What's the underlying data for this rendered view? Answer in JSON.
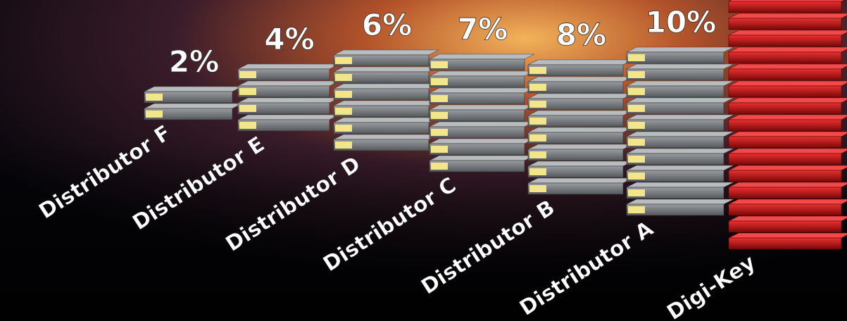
{
  "chart_data": {
    "type": "bar",
    "categories": [
      "Distributor F",
      "Distributor E",
      "Distributor D",
      "Distributor C",
      "Distributor B",
      "Distributor A",
      "Digi-Key"
    ],
    "values": [
      2,
      4,
      6,
      7,
      8,
      10,
      null
    ],
    "value_labels": [
      "2%",
      "4%",
      "6%",
      "7%",
      "8%",
      "10%",
      null
    ],
    "color": "#8a8d90",
    "highlight_color": "#d01818",
    "highlight_label_color": "#f5c400"
  }
}
